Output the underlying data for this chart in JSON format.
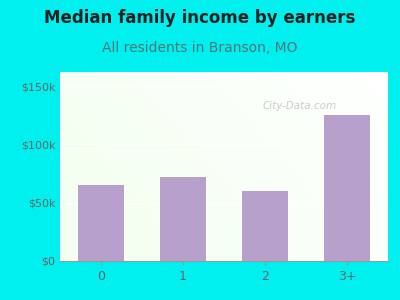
{
  "title": "Median family income by earners",
  "subtitle": "All residents in Branson, MO",
  "categories": [
    "0",
    "1",
    "2",
    "3+"
  ],
  "values": [
    65000,
    72000,
    60000,
    125000
  ],
  "bar_color": "#b8a0cc",
  "outer_bg": "#00efef",
  "title_color": "#222222",
  "subtitle_color": "#557777",
  "axis_label_color": "#666666",
  "ytick_labels": [
    "$0",
    "$50k",
    "$100k",
    "$150k"
  ],
  "ytick_values": [
    0,
    50000,
    100000,
    150000
  ],
  "ylim": [
    0,
    162000
  ],
  "watermark": "City-Data.com",
  "title_fontsize": 12,
  "subtitle_fontsize": 10
}
